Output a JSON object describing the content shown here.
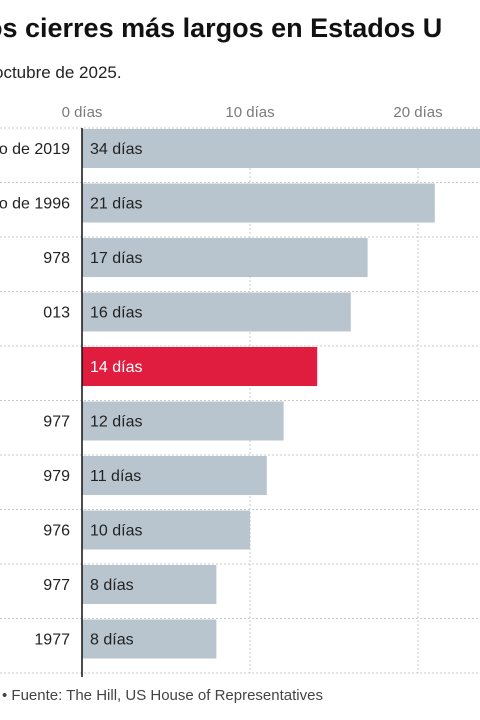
{
  "title": "os cierres más largos en Estados U",
  "subtitle": "octubre de 2025.",
  "source": "• Fuente: The Hill, US House of Representatives",
  "colors": {
    "bar": "#b8c5cf",
    "highlight": "#e11d3f",
    "grid": "#c8c8c8",
    "axis": "#111111"
  },
  "chart_data": {
    "type": "bar",
    "orientation": "horizontal",
    "categories": [
      "o de 2019",
      "o de 1996",
      "978",
      "013",
      "",
      "977",
      "979",
      "976",
      "977",
      "1977"
    ],
    "values": [
      34,
      21,
      17,
      16,
      14,
      12,
      11,
      10,
      8,
      8
    ],
    "value_labels": [
      "34 días",
      "21 días",
      "17 días",
      "16 días",
      "14 días",
      "12 días",
      "11 días",
      "10 días",
      "8 días",
      "8 días"
    ],
    "highlight_index": 4,
    "x_ticks": [
      0,
      10,
      20
    ],
    "x_tick_labels": [
      "0 días",
      "10 días",
      "20 días"
    ],
    "grid": true
  }
}
